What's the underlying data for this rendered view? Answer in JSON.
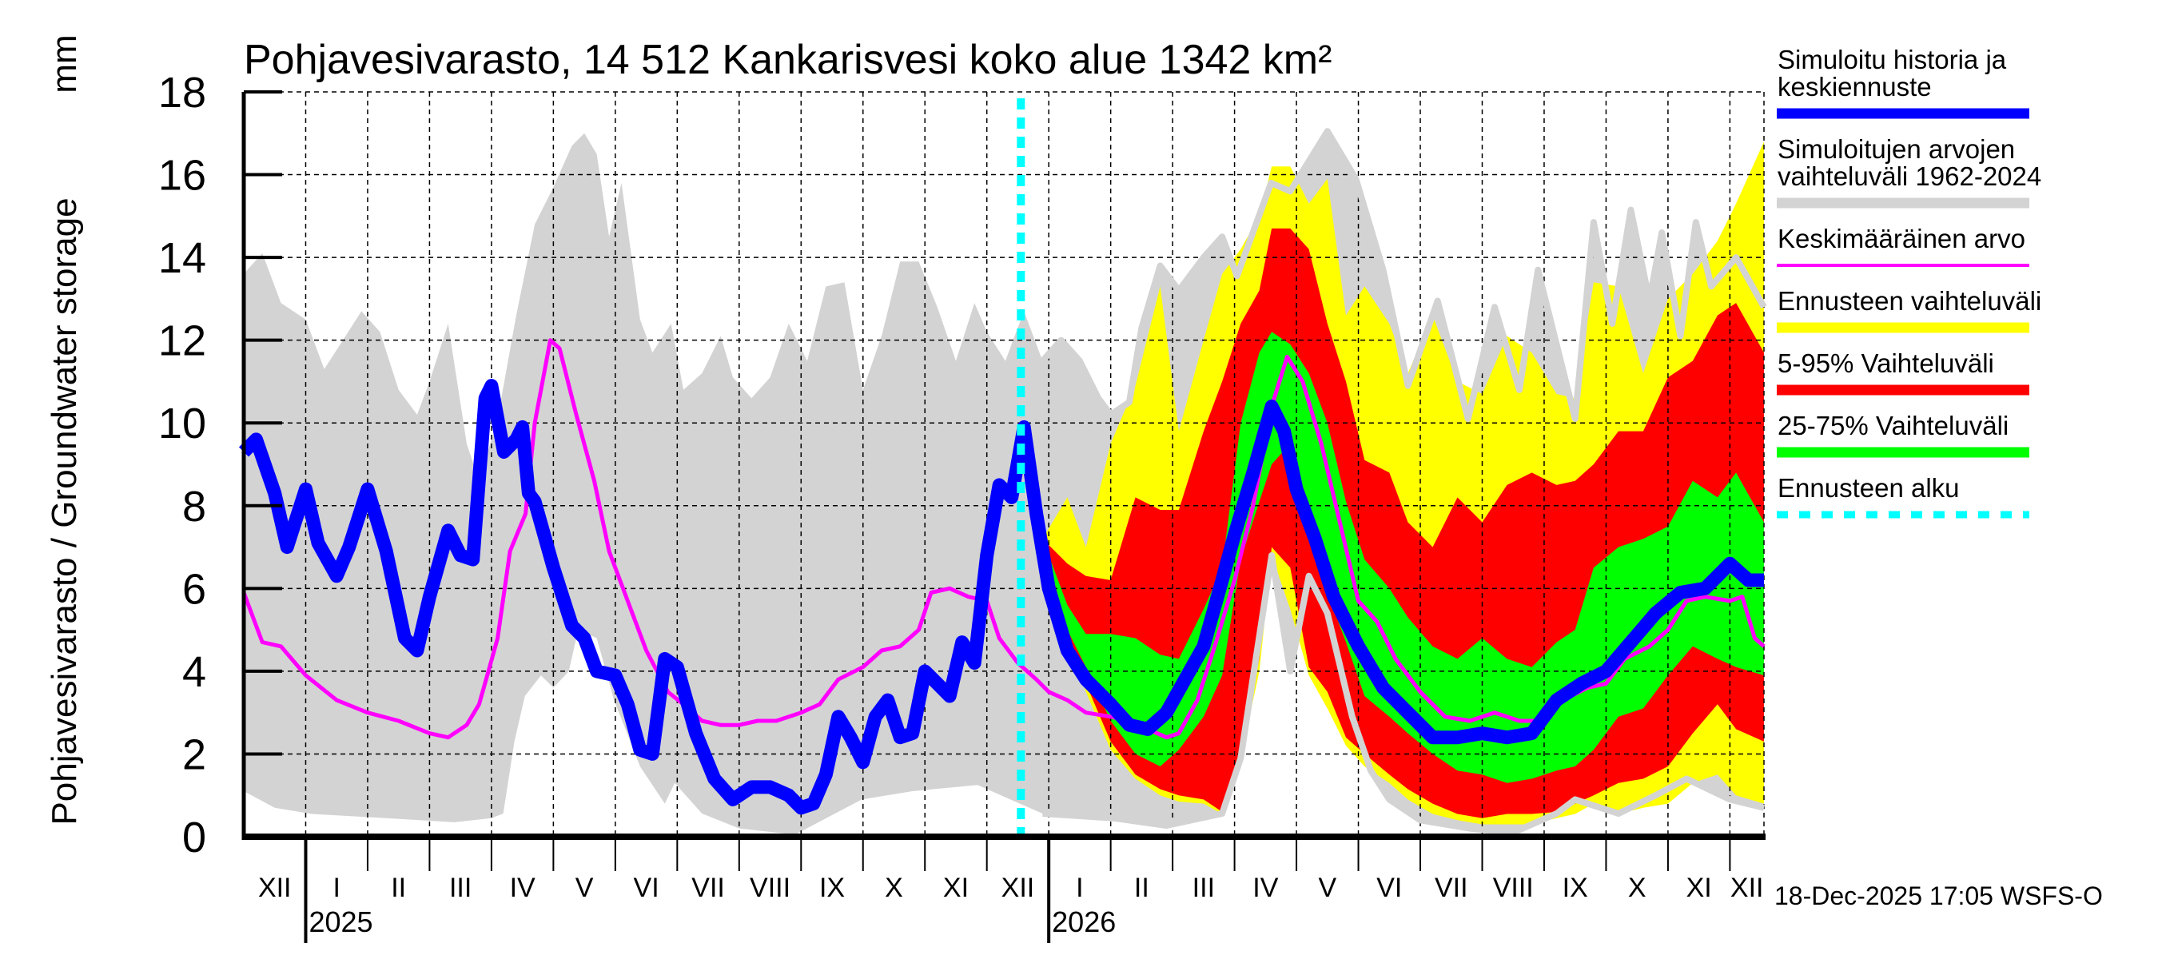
{
  "chart_data": {
    "type": "area",
    "title": "Pohjavesivarasto, 14 512 Kankarisvesi koko alue 1342 km²",
    "ylabel": "Pohjavesivarasto / Groundwater storage",
    "yunit": "mm",
    "ylim": [
      0,
      18
    ],
    "yticks": [
      "0",
      "2",
      "4",
      "6",
      "8",
      "10",
      "12",
      "14",
      "16",
      "18"
    ],
    "x_unit": "month index (0 = 1 Dec 2024)",
    "xlim": [
      0,
      24.55
    ],
    "x_ticks": [
      "XII",
      "I",
      "II",
      "III",
      "IV",
      "V",
      "VI",
      "VII",
      "VIII",
      "IX",
      "X",
      "XI",
      "XII",
      "I",
      "II",
      "III",
      "IV",
      "V",
      "VI",
      "VII",
      "VIII",
      "IX",
      "X",
      "XI",
      "XII"
    ],
    "years": [
      {
        "label": "2025",
        "month_index": 1
      },
      {
        "label": "2026",
        "month_index": 13
      }
    ],
    "grid": true,
    "legend_position": "right",
    "forecast_start_month_index": 12.55,
    "timestamp": "18-Dec-2025 17:05 WSFS-O",
    "colors": {
      "blue": "#0000ff",
      "gray": "#d3d3d3",
      "magenta": "#ff00ff",
      "yellow": "#ffff00",
      "red": "#ff0000",
      "green": "#00ff00",
      "cyan": "#00ffff"
    },
    "legend": [
      {
        "lines": [
          "Simuloitu historia ja",
          "keskiennuste"
        ],
        "color": "#0000ff",
        "style": "thick"
      },
      {
        "lines": [
          "Simuloitujen arvojen",
          "vaihteluväli 1962-2024"
        ],
        "color": "#d3d3d3",
        "style": "thick"
      },
      {
        "lines": [
          "Keskimääräinen arvo"
        ],
        "color": "#ff00ff",
        "style": "thin"
      },
      {
        "lines": [
          "Ennusteen vaihteluväli"
        ],
        "color": "#ffff00",
        "style": "thick"
      },
      {
        "lines": [
          "5-95% Vaihteluväli"
        ],
        "color": "#ff0000",
        "style": "thick"
      },
      {
        "lines": [
          "25-75% Vaihteluväli"
        ],
        "color": "#00ff00",
        "style": "thick"
      },
      {
        "lines": [
          "Ennusteen alku"
        ],
        "color": "#00ffff",
        "style": "dashed"
      }
    ],
    "historical_range_max": [
      [
        0,
        13.6
      ],
      [
        0.3,
        14.1
      ],
      [
        0.6,
        12.9
      ],
      [
        1.0,
        12.5
      ],
      [
        1.3,
        11.3
      ],
      [
        1.6,
        12.0
      ],
      [
        1.9,
        12.7
      ],
      [
        2.2,
        12.2
      ],
      [
        2.5,
        10.8
      ],
      [
        2.8,
        10.2
      ],
      [
        3.0,
        11.0
      ],
      [
        3.3,
        12.4
      ],
      [
        3.6,
        9.5
      ],
      [
        3.8,
        8.6
      ],
      [
        4.1,
        10.1
      ],
      [
        4.4,
        12.6
      ],
      [
        4.7,
        14.8
      ],
      [
        5.0,
        15.7
      ],
      [
        5.3,
        16.7
      ],
      [
        5.5,
        17.0
      ],
      [
        5.7,
        16.5
      ],
      [
        5.9,
        14.5
      ],
      [
        6.1,
        15.8
      ],
      [
        6.4,
        12.5
      ],
      [
        6.6,
        11.7
      ],
      [
        6.9,
        12.4
      ],
      [
        7.1,
        10.8
      ],
      [
        7.4,
        11.2
      ],
      [
        7.7,
        12.1
      ],
      [
        7.9,
        11.1
      ],
      [
        8.2,
        10.6
      ],
      [
        8.5,
        11.1
      ],
      [
        8.8,
        12.4
      ],
      [
        9.1,
        11.5
      ],
      [
        9.4,
        13.3
      ],
      [
        9.7,
        13.4
      ],
      [
        10.0,
        10.8
      ],
      [
        10.3,
        12.1
      ],
      [
        10.6,
        13.9
      ],
      [
        10.9,
        13.9
      ],
      [
        11.2,
        12.8
      ],
      [
        11.5,
        11.5
      ],
      [
        11.8,
        12.9
      ],
      [
        12.0,
        12.2
      ],
      [
        12.3,
        11.5
      ],
      [
        12.6,
        12.7
      ],
      [
        12.9,
        11.5
      ],
      [
        13.2,
        12.0
      ],
      [
        13.5,
        11.5
      ],
      [
        13.8,
        10.6
      ],
      [
        14.0,
        10.2
      ],
      [
        14.3,
        10.5
      ],
      [
        14.5,
        12.3
      ],
      [
        14.8,
        13.8
      ],
      [
        15.1,
        13.2
      ],
      [
        15.5,
        14.0
      ],
      [
        15.8,
        14.5
      ],
      [
        16.04,
        13.55
      ],
      [
        16.59,
        15.8
      ],
      [
        16.9,
        15.6
      ],
      [
        17.5,
        17.05
      ],
      [
        17.96,
        15.9
      ],
      [
        18.4,
        13.7
      ],
      [
        18.8,
        10.9
      ],
      [
        19.28,
        12.95
      ],
      [
        19.77,
        10.1
      ],
      [
        20.2,
        12.8
      ],
      [
        20.6,
        10.8
      ],
      [
        20.9,
        13.7
      ],
      [
        21.5,
        10.1
      ],
      [
        21.8,
        14.85
      ],
      [
        22.1,
        12.4
      ],
      [
        22.4,
        15.15
      ],
      [
        22.7,
        12.95
      ],
      [
        22.9,
        14.6
      ],
      [
        23.2,
        12.1
      ],
      [
        23.45,
        14.85
      ],
      [
        23.7,
        13.3
      ],
      [
        24.1,
        14.0
      ],
      [
        24.55,
        12.8
      ]
    ],
    "historical_range_min": [
      [
        0,
        1.1
      ],
      [
        0.5,
        0.7
      ],
      [
        1.1,
        0.55
      ],
      [
        2.3,
        0.45
      ],
      [
        3.4,
        0.35
      ],
      [
        4.0,
        0.45
      ],
      [
        4.19,
        0.56
      ],
      [
        4.37,
        2.3
      ],
      [
        4.54,
        3.4
      ],
      [
        4.8,
        3.9
      ],
      [
        5.0,
        3.6
      ],
      [
        5.25,
        4.0
      ],
      [
        5.4,
        5.0
      ],
      [
        5.7,
        4.8
      ],
      [
        5.98,
        3.3
      ],
      [
        6.4,
        1.7
      ],
      [
        6.8,
        0.8
      ],
      [
        6.96,
        1.3
      ],
      [
        7.4,
        0.56
      ],
      [
        8.0,
        0.2
      ],
      [
        8.9,
        0.05
      ],
      [
        9.98,
        0.9
      ],
      [
        10.8,
        1.1
      ],
      [
        11.85,
        1.25
      ],
      [
        12.9,
        0.56
      ],
      [
        14.05,
        0.45
      ],
      [
        14.9,
        0.27
      ],
      [
        15.8,
        0.56
      ],
      [
        16.1,
        1.9
      ],
      [
        16.6,
        6.8
      ],
      [
        16.9,
        4.0
      ],
      [
        17.2,
        6.3
      ],
      [
        17.5,
        5.4
      ],
      [
        17.9,
        2.9
      ],
      [
        18.2,
        1.6
      ],
      [
        18.5,
        0.9
      ],
      [
        19.0,
        0.4
      ],
      [
        19.8,
        0.2
      ],
      [
        20.5,
        0.1
      ],
      [
        21.2,
        0.56
      ],
      [
        21.5,
        0.9
      ],
      [
        22.2,
        0.56
      ],
      [
        22.8,
        1.0
      ],
      [
        23.3,
        1.4
      ],
      [
        24.0,
        0.9
      ],
      [
        24.55,
        0.7
      ]
    ],
    "forecast_bands_columns": [
      "month_index",
      "yellow_min",
      "red_min",
      "green_min",
      "green_max",
      "red_max",
      "yellow_max"
    ],
    "forecast_bands": [
      [
        12.9,
        7.2,
        7.2,
        7.2,
        7.2,
        7.2,
        7.2
      ],
      [
        13.3,
        4.7,
        4.8,
        5.0,
        5.6,
        6.6,
        8.2
      ],
      [
        13.6,
        3.5,
        3.7,
        4.1,
        4.9,
        6.3,
        7.0
      ],
      [
        14.0,
        2.1,
        2.3,
        2.8,
        4.9,
        6.2,
        9.5
      ],
      [
        14.4,
        1.4,
        1.5,
        2.0,
        4.8,
        8.2,
        10.9
      ],
      [
        14.8,
        1.0,
        1.15,
        1.7,
        4.4,
        7.9,
        13.3
      ],
      [
        15.1,
        0.85,
        1.0,
        2.1,
        4.3,
        7.9,
        9.8
      ],
      [
        15.5,
        0.8,
        0.9,
        2.9,
        5.5,
        9.8,
        12.0
      ],
      [
        15.8,
        0.55,
        0.6,
        3.9,
        6.5,
        11.0,
        13.6
      ],
      [
        16.1,
        1.9,
        2.0,
        6.7,
        10.0,
        12.4,
        14.2
      ],
      [
        16.4,
        4.0,
        4.3,
        8.1,
        11.7,
        13.2,
        15.0
      ],
      [
        16.6,
        6.8,
        7.0,
        9.0,
        12.2,
        14.7,
        16.2
      ],
      [
        16.9,
        5.5,
        6.5,
        9.5,
        11.9,
        14.7,
        16.2
      ],
      [
        17.2,
        3.9,
        4.1,
        7.6,
        11.2,
        14.2,
        15.3
      ],
      [
        17.5,
        3.1,
        3.5,
        5.9,
        10.0,
        12.4,
        15.9
      ],
      [
        17.8,
        2.2,
        2.4,
        4.7,
        8.1,
        11.0,
        12.6
      ],
      [
        18.1,
        1.7,
        2.0,
        3.4,
        6.7,
        9.1,
        13.3
      ],
      [
        18.5,
        1.3,
        1.5,
        2.9,
        6.0,
        8.8,
        12.4
      ],
      [
        18.8,
        0.9,
        1.15,
        2.5,
        5.3,
        7.6,
        11.2
      ],
      [
        19.2,
        0.55,
        0.8,
        2.0,
        4.6,
        7.0,
        12.6
      ],
      [
        19.6,
        0.4,
        0.55,
        1.6,
        4.3,
        8.2,
        11.0
      ],
      [
        20.0,
        0.3,
        0.45,
        1.5,
        4.8,
        7.6,
        10.7
      ],
      [
        20.4,
        0.3,
        0.55,
        1.3,
        4.3,
        8.5,
        12.1
      ],
      [
        20.8,
        0.3,
        0.55,
        1.4,
        4.1,
        8.8,
        11.7
      ],
      [
        21.2,
        0.45,
        0.6,
        1.6,
        4.7,
        8.5,
        10.7
      ],
      [
        21.5,
        0.55,
        0.8,
        1.7,
        5.0,
        8.6,
        10.6
      ],
      [
        21.8,
        0.8,
        1.0,
        2.1,
        6.5,
        9.0,
        13.4
      ],
      [
        22.2,
        0.55,
        1.3,
        2.9,
        7.0,
        9.8,
        13.3
      ],
      [
        22.6,
        0.7,
        1.4,
        3.1,
        7.2,
        9.8,
        11.2
      ],
      [
        23.0,
        0.8,
        1.7,
        3.9,
        7.5,
        11.1,
        13.0
      ],
      [
        23.4,
        1.3,
        2.5,
        4.6,
        8.6,
        11.5,
        13.6
      ],
      [
        23.8,
        1.5,
        3.2,
        4.3,
        8.2,
        12.6,
        14.4
      ],
      [
        24.1,
        1.0,
        2.6,
        4.1,
        8.8,
        12.9,
        15.3
      ],
      [
        24.55,
        0.8,
        2.3,
        3.9,
        7.6,
        11.7,
        16.8
      ]
    ],
    "mean_value": [
      [
        0,
        5.9
      ],
      [
        0.3,
        4.7
      ],
      [
        0.6,
        4.6
      ],
      [
        1.0,
        3.9
      ],
      [
        1.5,
        3.3
      ],
      [
        2.0,
        3.0
      ],
      [
        2.5,
        2.8
      ],
      [
        3.0,
        2.5
      ],
      [
        3.3,
        2.4
      ],
      [
        3.6,
        2.7
      ],
      [
        3.8,
        3.2
      ],
      [
        3.97,
        4.1
      ],
      [
        4.1,
        4.8
      ],
      [
        4.3,
        6.9
      ],
      [
        4.55,
        7.8
      ],
      [
        4.7,
        10.0
      ],
      [
        4.95,
        12.0
      ],
      [
        5.1,
        11.8
      ],
      [
        5.37,
        10.2
      ],
      [
        5.66,
        8.6
      ],
      [
        5.9,
        6.9
      ],
      [
        6.25,
        5.5
      ],
      [
        6.5,
        4.5
      ],
      [
        6.85,
        3.5
      ],
      [
        7.1,
        3.2
      ],
      [
        7.4,
        2.8
      ],
      [
        7.7,
        2.7
      ],
      [
        8.0,
        2.7
      ],
      [
        8.3,
        2.8
      ],
      [
        8.6,
        2.8
      ],
      [
        9.0,
        3.0
      ],
      [
        9.3,
        3.2
      ],
      [
        9.6,
        3.8
      ],
      [
        10.0,
        4.1
      ],
      [
        10.3,
        4.5
      ],
      [
        10.6,
        4.6
      ],
      [
        10.9,
        5.0
      ],
      [
        11.1,
        5.9
      ],
      [
        11.4,
        6.0
      ],
      [
        11.7,
        5.8
      ],
      [
        12.0,
        5.7
      ],
      [
        12.2,
        4.8
      ],
      [
        12.5,
        4.2
      ],
      [
        12.8,
        3.8
      ],
      [
        13.0,
        3.5
      ],
      [
        13.3,
        3.3
      ],
      [
        13.6,
        3.0
      ],
      [
        14.0,
        2.9
      ],
      [
        14.3,
        2.8
      ],
      [
        14.6,
        2.6
      ],
      [
        14.9,
        2.4
      ],
      [
        15.1,
        2.5
      ],
      [
        15.4,
        3.3
      ],
      [
        15.7,
        4.7
      ],
      [
        16.0,
        6.2
      ],
      [
        16.3,
        8.0
      ],
      [
        16.6,
        10.4
      ],
      [
        16.85,
        11.6
      ],
      [
        17.1,
        11.0
      ],
      [
        17.4,
        9.5
      ],
      [
        17.7,
        7.6
      ],
      [
        18.0,
        5.7
      ],
      [
        18.3,
        5.2
      ],
      [
        18.6,
        4.3
      ],
      [
        19.0,
        3.5
      ],
      [
        19.4,
        2.9
      ],
      [
        19.8,
        2.8
      ],
      [
        20.2,
        3.0
      ],
      [
        20.6,
        2.8
      ],
      [
        21.0,
        2.8
      ],
      [
        21.3,
        3.3
      ],
      [
        21.7,
        3.6
      ],
      [
        22.0,
        3.7
      ],
      [
        22.3,
        4.3
      ],
      [
        22.7,
        4.6
      ],
      [
        23.0,
        5.0
      ],
      [
        23.3,
        5.7
      ],
      [
        23.6,
        5.8
      ],
      [
        24.0,
        5.7
      ],
      [
        24.2,
        5.8
      ],
      [
        24.4,
        4.8
      ],
      [
        24.55,
        4.6
      ]
    ],
    "simulated_and_median_forecast": [
      [
        0,
        9.3
      ],
      [
        0.2,
        9.6
      ],
      [
        0.5,
        8.3
      ],
      [
        0.7,
        7.0
      ],
      [
        1.0,
        8.4
      ],
      [
        1.2,
        7.1
      ],
      [
        1.5,
        6.3
      ],
      [
        1.7,
        7.0
      ],
      [
        2.0,
        8.4
      ],
      [
        2.3,
        6.9
      ],
      [
        2.6,
        4.8
      ],
      [
        2.8,
        4.5
      ],
      [
        3.0,
        5.8
      ],
      [
        3.3,
        7.4
      ],
      [
        3.5,
        6.8
      ],
      [
        3.7,
        6.7
      ],
      [
        3.9,
        10.6
      ],
      [
        4.0,
        10.9
      ],
      [
        4.2,
        9.3
      ],
      [
        4.4,
        9.6
      ],
      [
        4.5,
        9.9
      ],
      [
        4.6,
        8.3
      ],
      [
        4.7,
        8.1
      ],
      [
        5.0,
        6.5
      ],
      [
        5.3,
        5.1
      ],
      [
        5.5,
        4.8
      ],
      [
        5.7,
        4.0
      ],
      [
        6.0,
        3.9
      ],
      [
        6.2,
        3.2
      ],
      [
        6.4,
        2.1
      ],
      [
        6.6,
        2.0
      ],
      [
        6.8,
        4.3
      ],
      [
        7.0,
        4.1
      ],
      [
        7.3,
        2.5
      ],
      [
        7.6,
        1.4
      ],
      [
        7.9,
        0.9
      ],
      [
        8.2,
        1.2
      ],
      [
        8.5,
        1.2
      ],
      [
        8.8,
        1.0
      ],
      [
        9.0,
        0.7
      ],
      [
        9.2,
        0.8
      ],
      [
        9.4,
        1.5
      ],
      [
        9.6,
        2.9
      ],
      [
        9.8,
        2.4
      ],
      [
        10.0,
        1.8
      ],
      [
        10.2,
        2.9
      ],
      [
        10.4,
        3.3
      ],
      [
        10.6,
        2.4
      ],
      [
        10.8,
        2.5
      ],
      [
        11.0,
        4.0
      ],
      [
        11.2,
        3.7
      ],
      [
        11.4,
        3.4
      ],
      [
        11.6,
        4.7
      ],
      [
        11.8,
        4.2
      ],
      [
        12.0,
        6.8
      ],
      [
        12.2,
        8.5
      ],
      [
        12.4,
        8.2
      ],
      [
        12.6,
        9.9
      ],
      [
        12.8,
        7.8
      ],
      [
        13.0,
        6.0
      ],
      [
        13.3,
        4.5
      ],
      [
        13.6,
        3.8
      ],
      [
        14.0,
        3.2
      ],
      [
        14.3,
        2.7
      ],
      [
        14.6,
        2.6
      ],
      [
        14.9,
        3.0
      ],
      [
        15.2,
        3.8
      ],
      [
        15.5,
        4.6
      ],
      [
        15.8,
        6.2
      ],
      [
        16.0,
        7.3
      ],
      [
        16.3,
        8.8
      ],
      [
        16.6,
        10.4
      ],
      [
        16.8,
        9.8
      ],
      [
        17.0,
        8.4
      ],
      [
        17.3,
        7.2
      ],
      [
        17.6,
        5.8
      ],
      [
        18.0,
        4.6
      ],
      [
        18.4,
        3.6
      ],
      [
        18.8,
        3.0
      ],
      [
        19.2,
        2.4
      ],
      [
        19.6,
        2.4
      ],
      [
        20.0,
        2.5
      ],
      [
        20.4,
        2.4
      ],
      [
        20.8,
        2.5
      ],
      [
        21.2,
        3.3
      ],
      [
        21.6,
        3.7
      ],
      [
        22.0,
        4.0
      ],
      [
        22.4,
        4.7
      ],
      [
        22.8,
        5.4
      ],
      [
        23.2,
        5.9
      ],
      [
        23.6,
        6.0
      ],
      [
        24.0,
        6.6
      ],
      [
        24.3,
        6.2
      ],
      [
        24.55,
        6.2
      ]
    ]
  }
}
